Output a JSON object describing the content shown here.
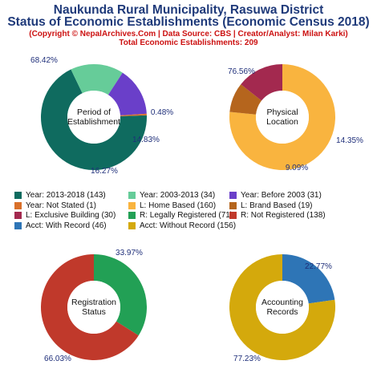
{
  "header": {
    "title_line1": "Naukunda Rural Municipality, Rasuwa District",
    "title_line2": "Status of Economic Establishments (Economic Census 2018)",
    "copyright": "(Copyright © NepalArchives.Com | Data Source: CBS | Creator/Analyst: Milan Karki)",
    "total": "Total Economic Establishments: 209"
  },
  "chart_data": [
    {
      "type": "pie",
      "center_label": [
        "Period of",
        "Establishment"
      ],
      "slices": [
        {
          "label": "Year: 2013-2018",
          "value": 143,
          "percent": "68.42%",
          "color": "#0f6b5f"
        },
        {
          "label": "Year: 2003-2013",
          "value": 34,
          "percent": "16.27%",
          "color": "#66cc99"
        },
        {
          "label": "Year: Before 2003",
          "value": 31,
          "percent": "14.83%",
          "color": "#6a3fc9"
        },
        {
          "label": "Year: Not Stated",
          "value": 1,
          "percent": "0.48%",
          "color": "#d9702a"
        }
      ]
    },
    {
      "type": "pie",
      "center_label": [
        "Physical",
        "Location"
      ],
      "slices": [
        {
          "label": "L: Home Based",
          "value": 160,
          "percent": "76.56%",
          "color": "#f9b43f"
        },
        {
          "label": "L: Brand Based",
          "value": 19,
          "percent": "9.09%",
          "color": "#b5651d"
        },
        {
          "label": "L: Exclusive Building",
          "value": 30,
          "percent": "14.35%",
          "color": "#a3294f"
        }
      ]
    },
    {
      "type": "pie",
      "center_label": [
        "Registration",
        "Status"
      ],
      "slices": [
        {
          "label": "R: Legally Registered",
          "value": 71,
          "percent": "33.97%",
          "color": "#22a055"
        },
        {
          "label": "R: Not Registered",
          "value": 138,
          "percent": "66.03%",
          "color": "#c0392b"
        }
      ]
    },
    {
      "type": "pie",
      "center_label": [
        "Accounting",
        "Records"
      ],
      "slices": [
        {
          "label": "Acct: With Record",
          "value": 46,
          "percent": "22.77%",
          "color": "#2e75b6"
        },
        {
          "label": "Acct: Without Record",
          "value": 156,
          "percent": "77.23%",
          "color": "#d4a90c"
        }
      ]
    }
  ],
  "legend": [
    {
      "text": "Year: 2013-2018 (143)",
      "color": "#0f6b5f"
    },
    {
      "text": "Year: 2003-2013 (34)",
      "color": "#66cc99"
    },
    {
      "text": "Year: Before 2003 (31)",
      "color": "#6a3fc9"
    },
    {
      "text": "Year: Not Stated (1)",
      "color": "#d9702a"
    },
    {
      "text": "L: Home Based (160)",
      "color": "#f9b43f"
    },
    {
      "text": "L: Brand Based (19)",
      "color": "#b5651d"
    },
    {
      "text": "L: Exclusive Building (30)",
      "color": "#a3294f"
    },
    {
      "text": "R: Legally Registered (71)",
      "color": "#22a055"
    },
    {
      "text": "R: Not Registered (138)",
      "color": "#c0392b"
    },
    {
      "text": "Acct: With Record (46)",
      "color": "#2e75b6"
    },
    {
      "text": "Acct: Without Record (156)",
      "color": "#d4a90c"
    }
  ]
}
